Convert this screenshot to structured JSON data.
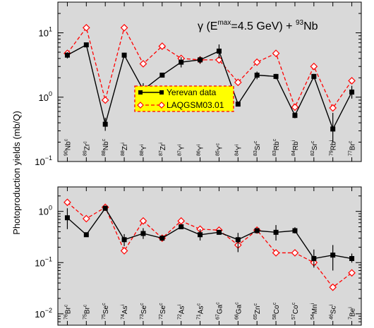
{
  "chart_data": [
    {
      "type": "line",
      "panel": "top",
      "title": "γ (E^max=4.5 GeV) + ^93Nb",
      "title_parts": {
        "gamma": "γ (E",
        "emax_sup": "max",
        "energy": "=4.5 GeV) + ",
        "target_sup": "93",
        "target": "Nb"
      },
      "ylabel": "Photoproduction yields (mb/Q)",
      "yscale": "log",
      "ylim": [
        0.1,
        30
      ],
      "yticks": [
        {
          "value": 0.1,
          "base": "10",
          "exp": "−1"
        },
        {
          "value": 1,
          "base": "10",
          "exp": "0"
        },
        {
          "value": 10,
          "base": "10",
          "exp": "1"
        }
      ],
      "categories": [
        {
          "mass": "90",
          "elem": "Nb",
          "type": "c"
        },
        {
          "mass": "89",
          "elem": "Zr",
          "type": "c"
        },
        {
          "mass": "88",
          "elem": "Nb",
          "type": "c"
        },
        {
          "mass": "88",
          "elem": "Zr",
          "type": "i"
        },
        {
          "mass": "88",
          "elem": "Y",
          "type": "i"
        },
        {
          "mass": "87",
          "elem": "Zr",
          "type": "i"
        },
        {
          "mass": "87",
          "elem": "Y",
          "type": "i"
        },
        {
          "mass": "86",
          "elem": "Y",
          "type": "i"
        },
        {
          "mass": "85",
          "elem": "Y",
          "type": "c"
        },
        {
          "mass": "84",
          "elem": "Y",
          "type": "i"
        },
        {
          "mass": "83",
          "elem": "Sr",
          "type": "c"
        },
        {
          "mass": "83",
          "elem": "Rb",
          "type": "c"
        },
        {
          "mass": "84",
          "elem": "Rb",
          "type": "i"
        },
        {
          "mass": "82",
          "elem": "Sr",
          "type": "c"
        },
        {
          "mass": "79",
          "elem": "Rb",
          "type": "i"
        },
        {
          "mass": "77",
          "elem": "Br",
          "type": "c"
        }
      ],
      "series": [
        {
          "name": "Yerevan data",
          "color": "#000000",
          "values": [
            4.5,
            6.5,
            0.38,
            4.5,
            1.3,
            2.2,
            3.5,
            3.8,
            5.2,
            0.78,
            2.2,
            2.1,
            0.52,
            2.1,
            0.32,
            1.2
          ],
          "errors_lo": [
            0.5,
            0.5,
            0.08,
            0.4,
            0.25,
            0.15,
            0.6,
            0.5,
            1.2,
            0.05,
            0.3,
            0.2,
            0.05,
            0.2,
            0.12,
            0.25
          ],
          "errors_hi": [
            0.5,
            0.5,
            0.1,
            0.4,
            0.35,
            0.15,
            0.7,
            0.5,
            1.4,
            0.05,
            0.3,
            0.2,
            0.06,
            0.2,
            0.25,
            0.3
          ]
        },
        {
          "name": "LAQGSM03.01",
          "color": "#ff0000",
          "values": [
            4.8,
            12.0,
            0.9,
            12.0,
            3.3,
            6.2,
            4.0,
            3.8,
            3.8,
            1.7,
            3.5,
            4.8,
            0.7,
            3.0,
            0.68,
            1.8
          ]
        }
      ]
    },
    {
      "type": "line",
      "panel": "bottom",
      "ylabel": "Photoproduction yields (mb/Q)",
      "yscale": "log",
      "ylim": [
        0.006,
        3
      ],
      "yticks": [
        {
          "value": 0.01,
          "base": "10",
          "exp": "−2"
        },
        {
          "value": 0.1,
          "base": "10",
          "exp": "−1"
        },
        {
          "value": 1,
          "base": "10",
          "exp": "0"
        }
      ],
      "categories": [
        {
          "mass": "76",
          "elem": "Br",
          "type": "c"
        },
        {
          "mass": "75",
          "elem": "Br",
          "type": "c"
        },
        {
          "mass": "75",
          "elem": "Se",
          "type": "c"
        },
        {
          "mass": "74",
          "elem": "As",
          "type": "i"
        },
        {
          "mass": "73",
          "elem": "Se",
          "type": "c"
        },
        {
          "mass": "72",
          "elem": "Se",
          "type": "c"
        },
        {
          "mass": "72",
          "elem": "As",
          "type": "i"
        },
        {
          "mass": "71",
          "elem": "As",
          "type": "c"
        },
        {
          "mass": "67",
          "elem": "Ga",
          "type": "c"
        },
        {
          "mass": "66",
          "elem": "Ga",
          "type": "c"
        },
        {
          "mass": "65",
          "elem": "Zn",
          "type": "c"
        },
        {
          "mass": "58",
          "elem": "Co",
          "type": "c"
        },
        {
          "mass": "57",
          "elem": "Co",
          "type": "c"
        },
        {
          "mass": "54",
          "elem": "Mn",
          "type": "i"
        },
        {
          "mass": "46",
          "elem": "Sc",
          "type": "i"
        },
        {
          "mass": "7",
          "elem": "Be",
          "type": "i"
        }
      ],
      "series": [
        {
          "name": "Yerevan data",
          "color": "#000000",
          "values": [
            0.75,
            0.35,
            1.15,
            0.28,
            0.37,
            0.3,
            0.5,
            0.35,
            0.39,
            0.28,
            0.42,
            0.39,
            0.42,
            0.12,
            0.14,
            0.12
          ],
          "errors_lo": [
            0.3,
            0.03,
            0.1,
            0.07,
            0.08,
            0.03,
            0.04,
            0.08,
            0.04,
            0.12,
            0.04,
            0.12,
            0.05,
            0.04,
            0.07,
            0.02
          ],
          "errors_hi": [
            0.4,
            0.03,
            0.15,
            0.08,
            0.1,
            0.03,
            0.04,
            0.1,
            0.05,
            0.1,
            0.05,
            0.15,
            0.07,
            0.06,
            0.08,
            0.03
          ]
        },
        {
          "name": "LAQGSM03.01",
          "color": "#ff0000",
          "values": [
            1.5,
            0.72,
            1.2,
            0.17,
            0.65,
            0.3,
            0.65,
            0.45,
            0.43,
            0.22,
            0.43,
            0.155,
            0.155,
            0.1,
            0.033,
            0.063
          ]
        }
      ]
    }
  ],
  "legend": {
    "position": "center-left",
    "background": "#ffff00",
    "border": "#ff0000",
    "items": [
      {
        "label": "Yerevan data",
        "color": "#000000"
      },
      {
        "label": "LAQGSM03.01",
        "color": "#ff0000"
      }
    ]
  },
  "colors": {
    "panel_bg": "#d9d9d9",
    "data": "#000000",
    "model": "#ff0000",
    "legend_bg": "#ffff00"
  }
}
